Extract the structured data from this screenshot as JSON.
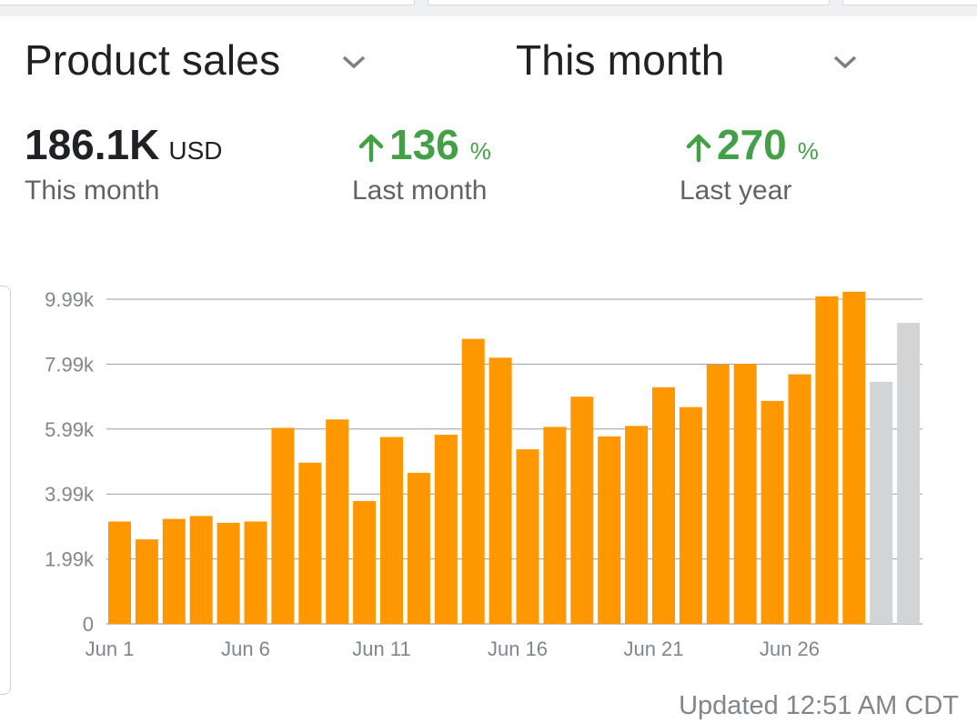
{
  "header": {
    "metric_selector": {
      "label": "Product sales",
      "icon": "chevron-down-icon"
    },
    "period_selector": {
      "label": "This month",
      "icon": "chevron-down-icon"
    }
  },
  "summary": {
    "current": {
      "value": "186.1K",
      "unit": "USD",
      "label": "This month"
    },
    "vs_last_month": {
      "value": "136",
      "unit": "%",
      "label": "Last month",
      "direction": "up",
      "icon": "arrow-up-icon"
    },
    "vs_last_year": {
      "value": "270",
      "unit": "%",
      "label": "Last year",
      "direction": "up",
      "icon": "arrow-up-icon"
    }
  },
  "colors": {
    "bar": "#FF9800",
    "bar_projected": "#D3D4D6",
    "positive": "#43A047",
    "grid": "#9E9E9E"
  },
  "chart_data": {
    "type": "bar",
    "x": [
      "Jun 1",
      "Jun 2",
      "Jun 3",
      "Jun 4",
      "Jun 5",
      "Jun 6",
      "Jun 7",
      "Jun 8",
      "Jun 9",
      "Jun 10",
      "Jun 11",
      "Jun 12",
      "Jun 13",
      "Jun 14",
      "Jun 15",
      "Jun 16",
      "Jun 17",
      "Jun 18",
      "Jun 19",
      "Jun 20",
      "Jun 21",
      "Jun 22",
      "Jun 23",
      "Jun 24",
      "Jun 25",
      "Jun 26",
      "Jun 27",
      "Jun 28",
      "Jun 29",
      "Jun 30"
    ],
    "series": [
      {
        "values": [
          3150,
          2600,
          3230,
          3320,
          3110,
          3150,
          6030,
          4960,
          6290,
          3780,
          5750,
          4650,
          5820,
          8770,
          8190,
          5370,
          6060,
          6990,
          5770,
          6090,
          7280,
          6670,
          7980,
          8000,
          6860,
          7680,
          10080,
          10220,
          null,
          null
        ]
      },
      {
        "values": [
          null,
          null,
          null,
          null,
          null,
          null,
          null,
          null,
          null,
          null,
          null,
          null,
          null,
          null,
          null,
          null,
          null,
          null,
          null,
          null,
          null,
          null,
          null,
          null,
          null,
          null,
          null,
          null,
          7450,
          9260
        ]
      }
    ],
    "yticks": [
      "0",
      "1.99k",
      "3.99k",
      "5.99k",
      "7.99k",
      "9.99k"
    ],
    "ytick_values": [
      0,
      1998,
      3996,
      5994,
      7992,
      9990
    ],
    "xticks": [
      "Jun 1",
      "Jun 6",
      "Jun 11",
      "Jun 16",
      "Jun 21",
      "Jun 26"
    ],
    "ylim": [
      0,
      10300
    ],
    "grid": true
  },
  "footer": {
    "updated": "Updated 12:51 AM CDT"
  }
}
